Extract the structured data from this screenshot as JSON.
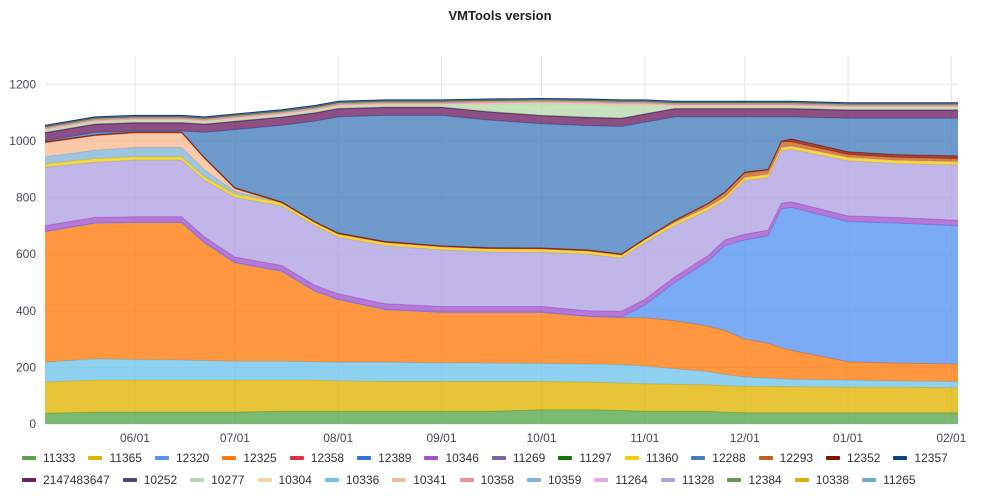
{
  "chart_data": {
    "type": "area",
    "stacked": true,
    "title": "VMTools version",
    "xlabel": "",
    "ylabel": "",
    "ylim": [
      0,
      1300
    ],
    "yticks": [
      0,
      200,
      400,
      600,
      800,
      1000,
      1200
    ],
    "xlim": [
      "05/05",
      "02/03"
    ],
    "xticks": [
      "06/01",
      "07/01",
      "08/01",
      "09/01",
      "10/01",
      "11/01",
      "12/01",
      "01/01",
      "02/01"
    ],
    "grid": true,
    "legend_placement": "bottom",
    "x": [
      "05/05",
      "05/20",
      "06/01",
      "06/15",
      "06/22",
      "07/01",
      "07/15",
      "07/25",
      "08/01",
      "08/15",
      "09/01",
      "09/15",
      "10/01",
      "10/15",
      "10/25",
      "11/01",
      "11/10",
      "11/20",
      "11/25",
      "12/01",
      "12/08",
      "12/12",
      "12/15",
      "01/01",
      "01/15",
      "02/03"
    ],
    "series": [
      {
        "name": "11333",
        "color": "#56A64B",
        "values": [
          38,
          42,
          42,
          42,
          42,
          42,
          45,
          45,
          45,
          45,
          45,
          45,
          50,
          50,
          48,
          45,
          45,
          45,
          42,
          40,
          40,
          40,
          40,
          40,
          40,
          40
        ]
      },
      {
        "name": "11365",
        "color": "#E0B400",
        "values": [
          110,
          113,
          113,
          113,
          113,
          113,
          110,
          110,
          107,
          105,
          105,
          105,
          100,
          98,
          97,
          97,
          95,
          93,
          93,
          93,
          93,
          92,
          92,
          90,
          90,
          88
        ]
      },
      {
        "name": "10336",
        "color": "#70C4ED",
        "values": [
          70,
          75,
          73,
          71,
          69,
          67,
          67,
          65,
          66,
          68,
          66,
          65,
          64,
          64,
          65,
          63,
          55,
          47,
          40,
          33,
          29,
          28,
          26,
          25,
          22,
          22
        ]
      },
      {
        "name": "12325",
        "color": "#FF780A",
        "values": [
          462,
          480,
          484,
          486,
          416,
          348,
          318,
          250,
          222,
          187,
          179,
          180,
          181,
          168,
          165,
          170,
          170,
          160,
          155,
          134,
          123,
          110,
          102,
          65,
          63,
          62
        ]
      },
      {
        "name": "12320",
        "color": "#5794F2",
        "values": [
          0,
          0,
          0,
          0,
          0,
          0,
          0,
          0,
          0,
          0,
          0,
          0,
          0,
          0,
          3,
          45,
          135,
          230,
          300,
          350,
          380,
          490,
          505,
          495,
          495,
          488
        ]
      },
      {
        "name": "10346",
        "color": "#A352CC",
        "values": [
          20,
          20,
          20,
          20,
          20,
          20,
          20,
          20,
          20,
          20,
          20,
          20,
          20,
          20,
          20,
          20,
          20,
          20,
          20,
          20,
          20,
          20,
          20,
          20,
          20,
          20
        ]
      },
      {
        "name": "11328",
        "color": "#AEA2E0",
        "values": [
          207,
          195,
          200,
          200,
          200,
          210,
          210,
          210,
          200,
          205,
          200,
          193,
          192,
          200,
          188,
          200,
          180,
          160,
          140,
          190,
          185,
          185,
          185,
          195,
          190,
          195
        ]
      },
      {
        "name": "11360",
        "color": "#F2CC0C",
        "values": [
          12,
          12,
          12,
          12,
          12,
          12,
          12,
          12,
          12,
          12,
          12,
          12,
          12,
          12,
          12,
          12,
          12,
          12,
          12,
          12,
          12,
          12,
          12,
          12,
          12,
          12
        ]
      },
      {
        "name": "10359",
        "color": "#82B5D8",
        "values": [
          25,
          30,
          33,
          33,
          25,
          10,
          0,
          0,
          0,
          0,
          0,
          0,
          0,
          0,
          0,
          0,
          0,
          0,
          0,
          0,
          0,
          0,
          0,
          0,
          0,
          0
        ]
      },
      {
        "name": "10341",
        "color": "#F9BA8F",
        "values": [
          50,
          52,
          52,
          52,
          40,
          10,
          0,
          0,
          0,
          0,
          0,
          0,
          0,
          0,
          0,
          0,
          0,
          0,
          0,
          0,
          0,
          0,
          0,
          0,
          0,
          0
        ]
      },
      {
        "name": "12293",
        "color": "#C4621D",
        "values": [
          0,
          0,
          0,
          0,
          0,
          0,
          0,
          0,
          0,
          0,
          0,
          0,
          0,
          0,
          0,
          0,
          5,
          10,
          15,
          15,
          15,
          20,
          15,
          10,
          10,
          10
        ]
      },
      {
        "name": "12352",
        "color": "#890F02",
        "values": [
          3,
          3,
          3,
          3,
          3,
          3,
          3,
          3,
          3,
          3,
          3,
          3,
          3,
          3,
          3,
          3,
          3,
          3,
          3,
          3,
          3,
          3,
          10,
          10,
          10,
          10
        ]
      },
      {
        "name": "12288",
        "color": "#447EBC",
        "values": [
          3,
          8,
          3,
          3,
          90,
          205,
          270,
          355,
          410,
          445,
          460,
          451,
          439,
          439,
          450,
          411,
          365,
          305,
          265,
          195,
          185,
          85,
          78,
          118,
          128,
          133
        ]
      },
      {
        "name": "2147483647",
        "color": "#6D1F62",
        "values": [
          28,
          28,
          28,
          28,
          28,
          28,
          28,
          28,
          28,
          28,
          28,
          28,
          28,
          28,
          28,
          28,
          28,
          28,
          28,
          28,
          28,
          28,
          28,
          28,
          28,
          28
        ]
      },
      {
        "name": "10252",
        "color": "#584477",
        "values": [
          2,
          2,
          2,
          2,
          2,
          2,
          2,
          2,
          2,
          2,
          2,
          2,
          2,
          2,
          2,
          2,
          2,
          2,
          2,
          2,
          2,
          2,
          2,
          2,
          2,
          2
        ]
      },
      {
        "name": "10277",
        "color": "#B7DBAB",
        "values": [
          6,
          6,
          6,
          6,
          6,
          6,
          6,
          6,
          6,
          6,
          6,
          25,
          40,
          45,
          45,
          30,
          6,
          6,
          6,
          6,
          6,
          6,
          6,
          6,
          6,
          6
        ]
      },
      {
        "name": "10304",
        "color": "#F4D598",
        "values": [
          3,
          3,
          3,
          3,
          3,
          3,
          3,
          3,
          3,
          3,
          3,
          3,
          3,
          3,
          3,
          3,
          3,
          3,
          3,
          3,
          3,
          3,
          3,
          3,
          3,
          3
        ]
      },
      {
        "name": "11264",
        "color": "#E5A8E2",
        "values": [
          3,
          3,
          3,
          3,
          3,
          3,
          3,
          3,
          3,
          3,
          3,
          3,
          3,
          3,
          3,
          3,
          3,
          3,
          3,
          3,
          3,
          3,
          3,
          3,
          3,
          3
        ]
      },
      {
        "name": "10358",
        "color": "#F29191",
        "values": [
          3,
          3,
          3,
          3,
          3,
          3,
          3,
          3,
          3,
          3,
          3,
          3,
          3,
          3,
          3,
          3,
          3,
          3,
          3,
          3,
          3,
          3,
          3,
          3,
          3,
          3
        ]
      },
      {
        "name": "11265",
        "color": "#64B0C8",
        "values": [
          2,
          2,
          2,
          2,
          2,
          2,
          2,
          2,
          2,
          2,
          2,
          2,
          2,
          2,
          2,
          2,
          2,
          2,
          2,
          2,
          2,
          2,
          2,
          2,
          2,
          2
        ]
      },
      {
        "name": "10338",
        "color": "#E5AC0E",
        "values": [
          2,
          2,
          2,
          2,
          2,
          2,
          2,
          2,
          2,
          2,
          2,
          2,
          2,
          2,
          2,
          2,
          2,
          2,
          2,
          2,
          2,
          2,
          2,
          2,
          2,
          2
        ]
      },
      {
        "name": "12384",
        "color": "#629E51",
        "values": [
          1,
          1,
          1,
          1,
          1,
          1,
          1,
          1,
          1,
          1,
          1,
          1,
          1,
          1,
          1,
          1,
          1,
          1,
          1,
          1,
          1,
          1,
          1,
          1,
          1,
          1
        ]
      },
      {
        "name": "11297",
        "color": "#19730E",
        "values": [
          1,
          1,
          1,
          1,
          1,
          1,
          1,
          1,
          1,
          1,
          1,
          1,
          1,
          1,
          1,
          1,
          1,
          1,
          1,
          1,
          1,
          1,
          1,
          1,
          1,
          1
        ]
      },
      {
        "name": "11269",
        "color": "#7C62AC",
        "values": [
          1,
          1,
          1,
          1,
          1,
          1,
          1,
          1,
          1,
          1,
          1,
          1,
          1,
          1,
          1,
          1,
          1,
          1,
          1,
          1,
          1,
          1,
          1,
          1,
          1,
          1
        ]
      },
      {
        "name": "12358",
        "color": "#E02F44",
        "values": [
          1,
          1,
          1,
          1,
          1,
          1,
          1,
          1,
          1,
          1,
          1,
          1,
          1,
          1,
          1,
          1,
          1,
          1,
          1,
          1,
          1,
          1,
          1,
          1,
          1,
          1
        ]
      },
      {
        "name": "12389",
        "color": "#3274D9",
        "values": [
          1,
          1,
          1,
          1,
          1,
          1,
          1,
          1,
          1,
          1,
          1,
          1,
          1,
          1,
          1,
          1,
          1,
          1,
          1,
          1,
          1,
          1,
          1,
          1,
          1,
          1
        ]
      },
      {
        "name": "12357",
        "color": "#0A437C",
        "values": [
          1,
          1,
          1,
          1,
          1,
          1,
          1,
          1,
          1,
          1,
          1,
          1,
          1,
          1,
          1,
          1,
          1,
          1,
          1,
          1,
          1,
          1,
          1,
          1,
          1,
          1
        ]
      }
    ],
    "legend_order": [
      "11333",
      "11365",
      "12320",
      "12325",
      "12358",
      "12389",
      "10346",
      "11269",
      "11297",
      "11360",
      "12288",
      "12293",
      "12352",
      "12357",
      "2147483647",
      "10252",
      "10277",
      "10304",
      "10336",
      "10341",
      "10358",
      "10359",
      "11264",
      "11328",
      "12384",
      "10338",
      "11265"
    ]
  }
}
